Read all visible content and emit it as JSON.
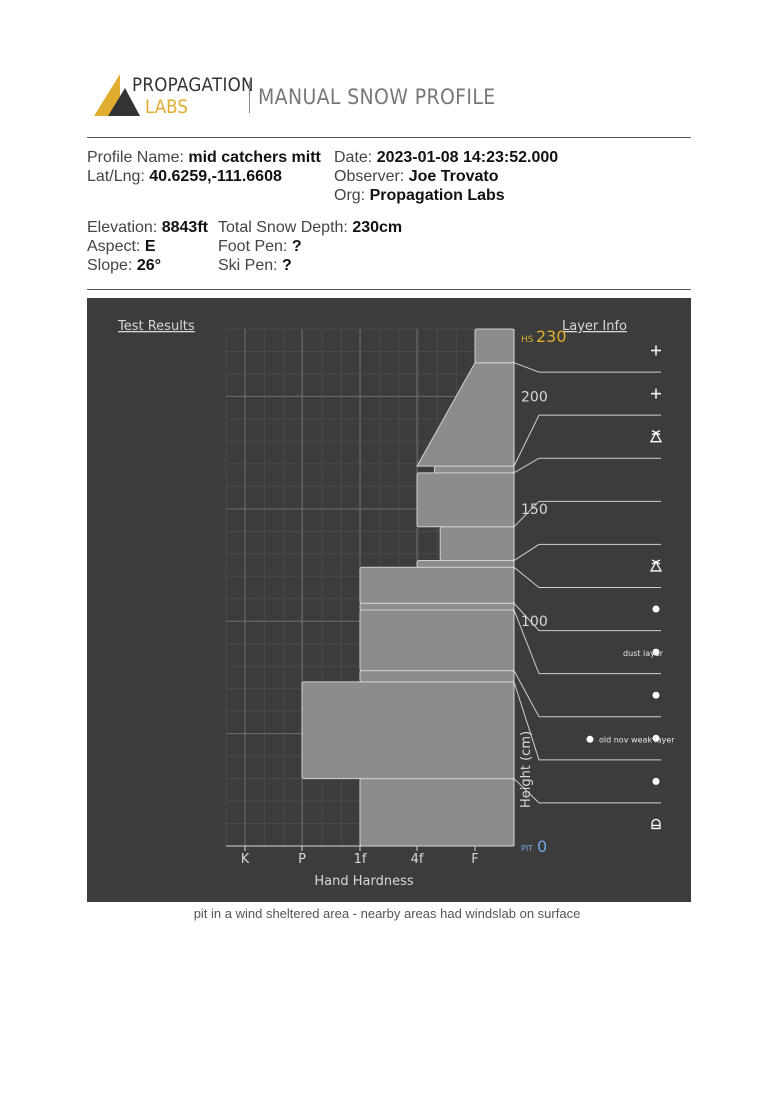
{
  "header": {
    "brand_top": "PROPAGATION",
    "brand_bottom": "LABS",
    "title": "MANUAL SNOW PROFILE",
    "brand_colors": {
      "gold": "#e0ad2f",
      "dark": "#333333"
    }
  },
  "meta": {
    "profile_name_label": "Profile Name:",
    "profile_name": "mid catchers mitt",
    "latlng_label": "Lat/Lng:",
    "latlng": "40.6259,-111.6608",
    "date_label": "Date:",
    "date": "2023-01-08 14:23:52.000",
    "observer_label": "Observer:",
    "observer": "Joe Trovato",
    "org_label": "Org:",
    "org": "Propagation Labs",
    "elevation_label": "Elevation:",
    "elevation": "8843ft",
    "aspect_label": "Aspect:",
    "aspect": "E",
    "slope_label": "Slope:",
    "slope": "26°",
    "depth_label": "Total Snow Depth:",
    "depth": "230cm",
    "foot_pen_label": "Foot Pen:",
    "foot_pen": "?",
    "ski_pen_label": "Ski Pen:",
    "ski_pen": "?"
  },
  "chart_data": {
    "type": "bar",
    "test_results_link": "Test Results",
    "layer_info_link": "Layer Info",
    "xlabel": "Hand Hardness",
    "ylabel": "Height (cm)",
    "x_ticks": [
      "K",
      "P",
      "1f",
      "4f",
      "F"
    ],
    "y_ticks": [
      0,
      50,
      100,
      150,
      200
    ],
    "y_tick_labels": [
      "",
      "",
      "100",
      "150",
      "200"
    ],
    "ylim": [
      0,
      230
    ],
    "hs_label": "HS",
    "hs_value": "230",
    "pit_label": "PIT",
    "pit_value": "0",
    "layers": [
      {
        "bottom": 0,
        "top": 30,
        "hardness_index": 2,
        "symbol": "a"
      },
      {
        "bottom": 30,
        "top": 73,
        "hardness_index": 1,
        "symbol": "dot"
      },
      {
        "bottom": 73,
        "top": 78,
        "hardness_index": 2,
        "symbol": "dot",
        "note": "old nov weak layer"
      },
      {
        "bottom": 78,
        "top": 105,
        "hardness_index": 2,
        "symbol": "dot"
      },
      {
        "bottom": 105,
        "top": 108,
        "hardness_index": 2,
        "symbol": "dot",
        "note": "dust layer"
      },
      {
        "bottom": 108,
        "top": 124,
        "hardness_index": 2,
        "symbol": "dot"
      },
      {
        "bottom": 124,
        "top": 127,
        "hardness_index": 3,
        "symbol": "hoar"
      },
      {
        "bottom": 127,
        "top": 142,
        "hardness_index": 3.4,
        "symbol": ""
      },
      {
        "bottom": 142,
        "top": 166,
        "hardness_index": 3,
        "symbol": ""
      },
      {
        "bottom": 166,
        "top": 169,
        "hardness_index": 3.3,
        "symbol": "hoar"
      },
      {
        "bottom": 169,
        "top": 215,
        "hardness_index_bottom": 3.0,
        "hardness_index_top": 4.0,
        "symbol": "plus"
      },
      {
        "bottom": 215,
        "top": 230,
        "hardness_index": 4,
        "symbol": "plus"
      }
    ],
    "annotations": [
      "dust layer",
      "old nov weak layer"
    ],
    "grid": true
  },
  "caption": "pit in a wind sheltered area - nearby areas had windslab on surface"
}
